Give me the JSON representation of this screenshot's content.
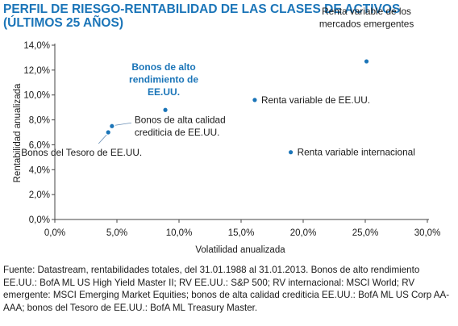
{
  "title": {
    "line1": "PERFIL DE RIESGO-RENTABILIDAD DE LAS CLASES DE ACTIVOS",
    "line2": "(ÚLTIMOS 25 AÑOS)"
  },
  "colors": {
    "accent": "#1b75b8",
    "point": "#1b75b8",
    "text": "#1a1a1a",
    "axis": "#444444"
  },
  "chart_data": {
    "type": "scatter",
    "xlabel": "Volatilidad anualizada",
    "ylabel": "Rentabilidad anualizada",
    "xlim": [
      0,
      30
    ],
    "ylim": [
      0,
      14
    ],
    "x_ticks": [
      "0,0%",
      "5,0%",
      "10,0%",
      "15,0%",
      "20,0%",
      "25,0%",
      "30,0%"
    ],
    "y_ticks": [
      "0,0%",
      "2,0%",
      "4,0%",
      "6,0%",
      "8,0%",
      "10,0%",
      "12,0%",
      "14,0%"
    ],
    "grid": false,
    "points": [
      {
        "label": [
          "Renta variable de los",
          "mercados emergentes"
        ],
        "x": 25.1,
        "y": 12.7,
        "highlight": false
      },
      {
        "label": [
          "Renta variable de EE.UU."
        ],
        "x": 16.1,
        "y": 9.6,
        "highlight": false
      },
      {
        "label": [
          "Bonos de alto",
          "rendimiento de",
          "EE.UU."
        ],
        "x": 8.9,
        "y": 8.8,
        "highlight": true
      },
      {
        "label": [
          "Bonos de alta calidad",
          "crediticia de EE.UU."
        ],
        "x": 4.6,
        "y": 7.5,
        "highlight": false
      },
      {
        "label": [
          "Bonos del Tesoro de EE.UU."
        ],
        "x": 4.3,
        "y": 7.0,
        "highlight": false
      },
      {
        "label": [
          "Renta variable internacional"
        ],
        "x": 19.0,
        "y": 5.4,
        "highlight": false
      }
    ]
  },
  "footnote": "Fuente: Datastream, rentabilidades totales, del 31.01.1988 al 31.01.2013. Bonos de alto rendimiento EE.UU.: BofA ML US High Yield Master II; RV EE.UU.: S&P 500; RV internacional: MSCI World; RV emergente: MSCI Emerging Market Equities; bonos de alta calidad crediticia EE.UU.: BofA ML US Corp AA-AAA; bonos del Tesoro de EE.UU.: BofA ML Treasury Master."
}
